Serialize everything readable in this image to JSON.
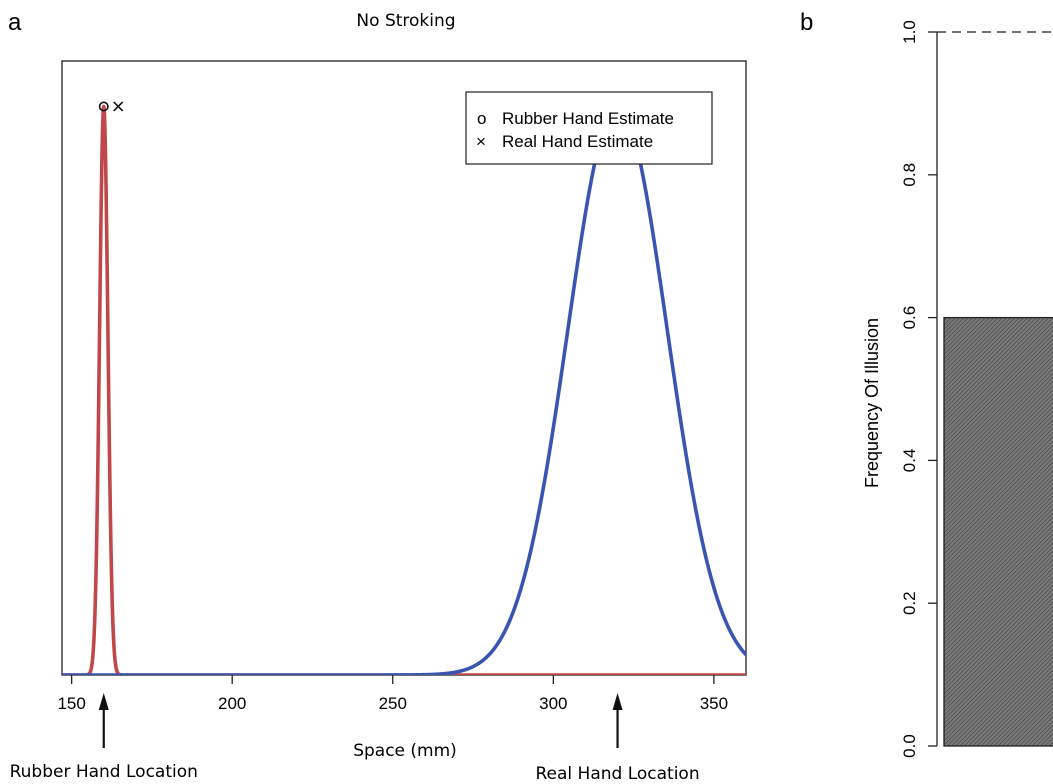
{
  "chart_data": [
    {
      "panel": "a",
      "type": "line",
      "title": "No Stroking",
      "xlabel": "Space (mm)",
      "ylabel": "",
      "xlim": [
        147,
        360
      ],
      "ylim": [
        0,
        1.08
      ],
      "xticks": [
        150,
        200,
        250,
        300,
        350
      ],
      "grid": false,
      "legend": {
        "placement": "top-right",
        "entries": [
          {
            "symbol": "o",
            "label": "Rubber Hand Estimate"
          },
          {
            "symbol": "×",
            "label": "Real Hand Estimate"
          }
        ]
      },
      "series": [
        {
          "color": "#c0474a",
          "mean": 160,
          "sd": 1.3,
          "peak": 1.0
        },
        {
          "color": "#3a55b0",
          "mean": 320,
          "sd": 15.5,
          "peak": 1.0
        }
      ],
      "points": [
        {
          "symbol": "o",
          "x": 160,
          "y": 1.0
        },
        {
          "symbol": "×",
          "x": 164.5,
          "y": 1.0
        }
      ],
      "annotations": [
        {
          "text": "Rubber Hand Location",
          "x": 160
        },
        {
          "text": "Real Hand Location",
          "x": 320
        }
      ]
    },
    {
      "panel": "b",
      "type": "bar",
      "ylabel": "Frequency Of Illusion",
      "ylim": [
        0,
        1.0
      ],
      "yticks": [
        "0.0",
        "0.2",
        "0.4",
        "0.6",
        "0.8",
        "1.0"
      ],
      "values": [
        0.6
      ],
      "fill": "hatched-gray",
      "reference_line": 1.0
    }
  ]
}
